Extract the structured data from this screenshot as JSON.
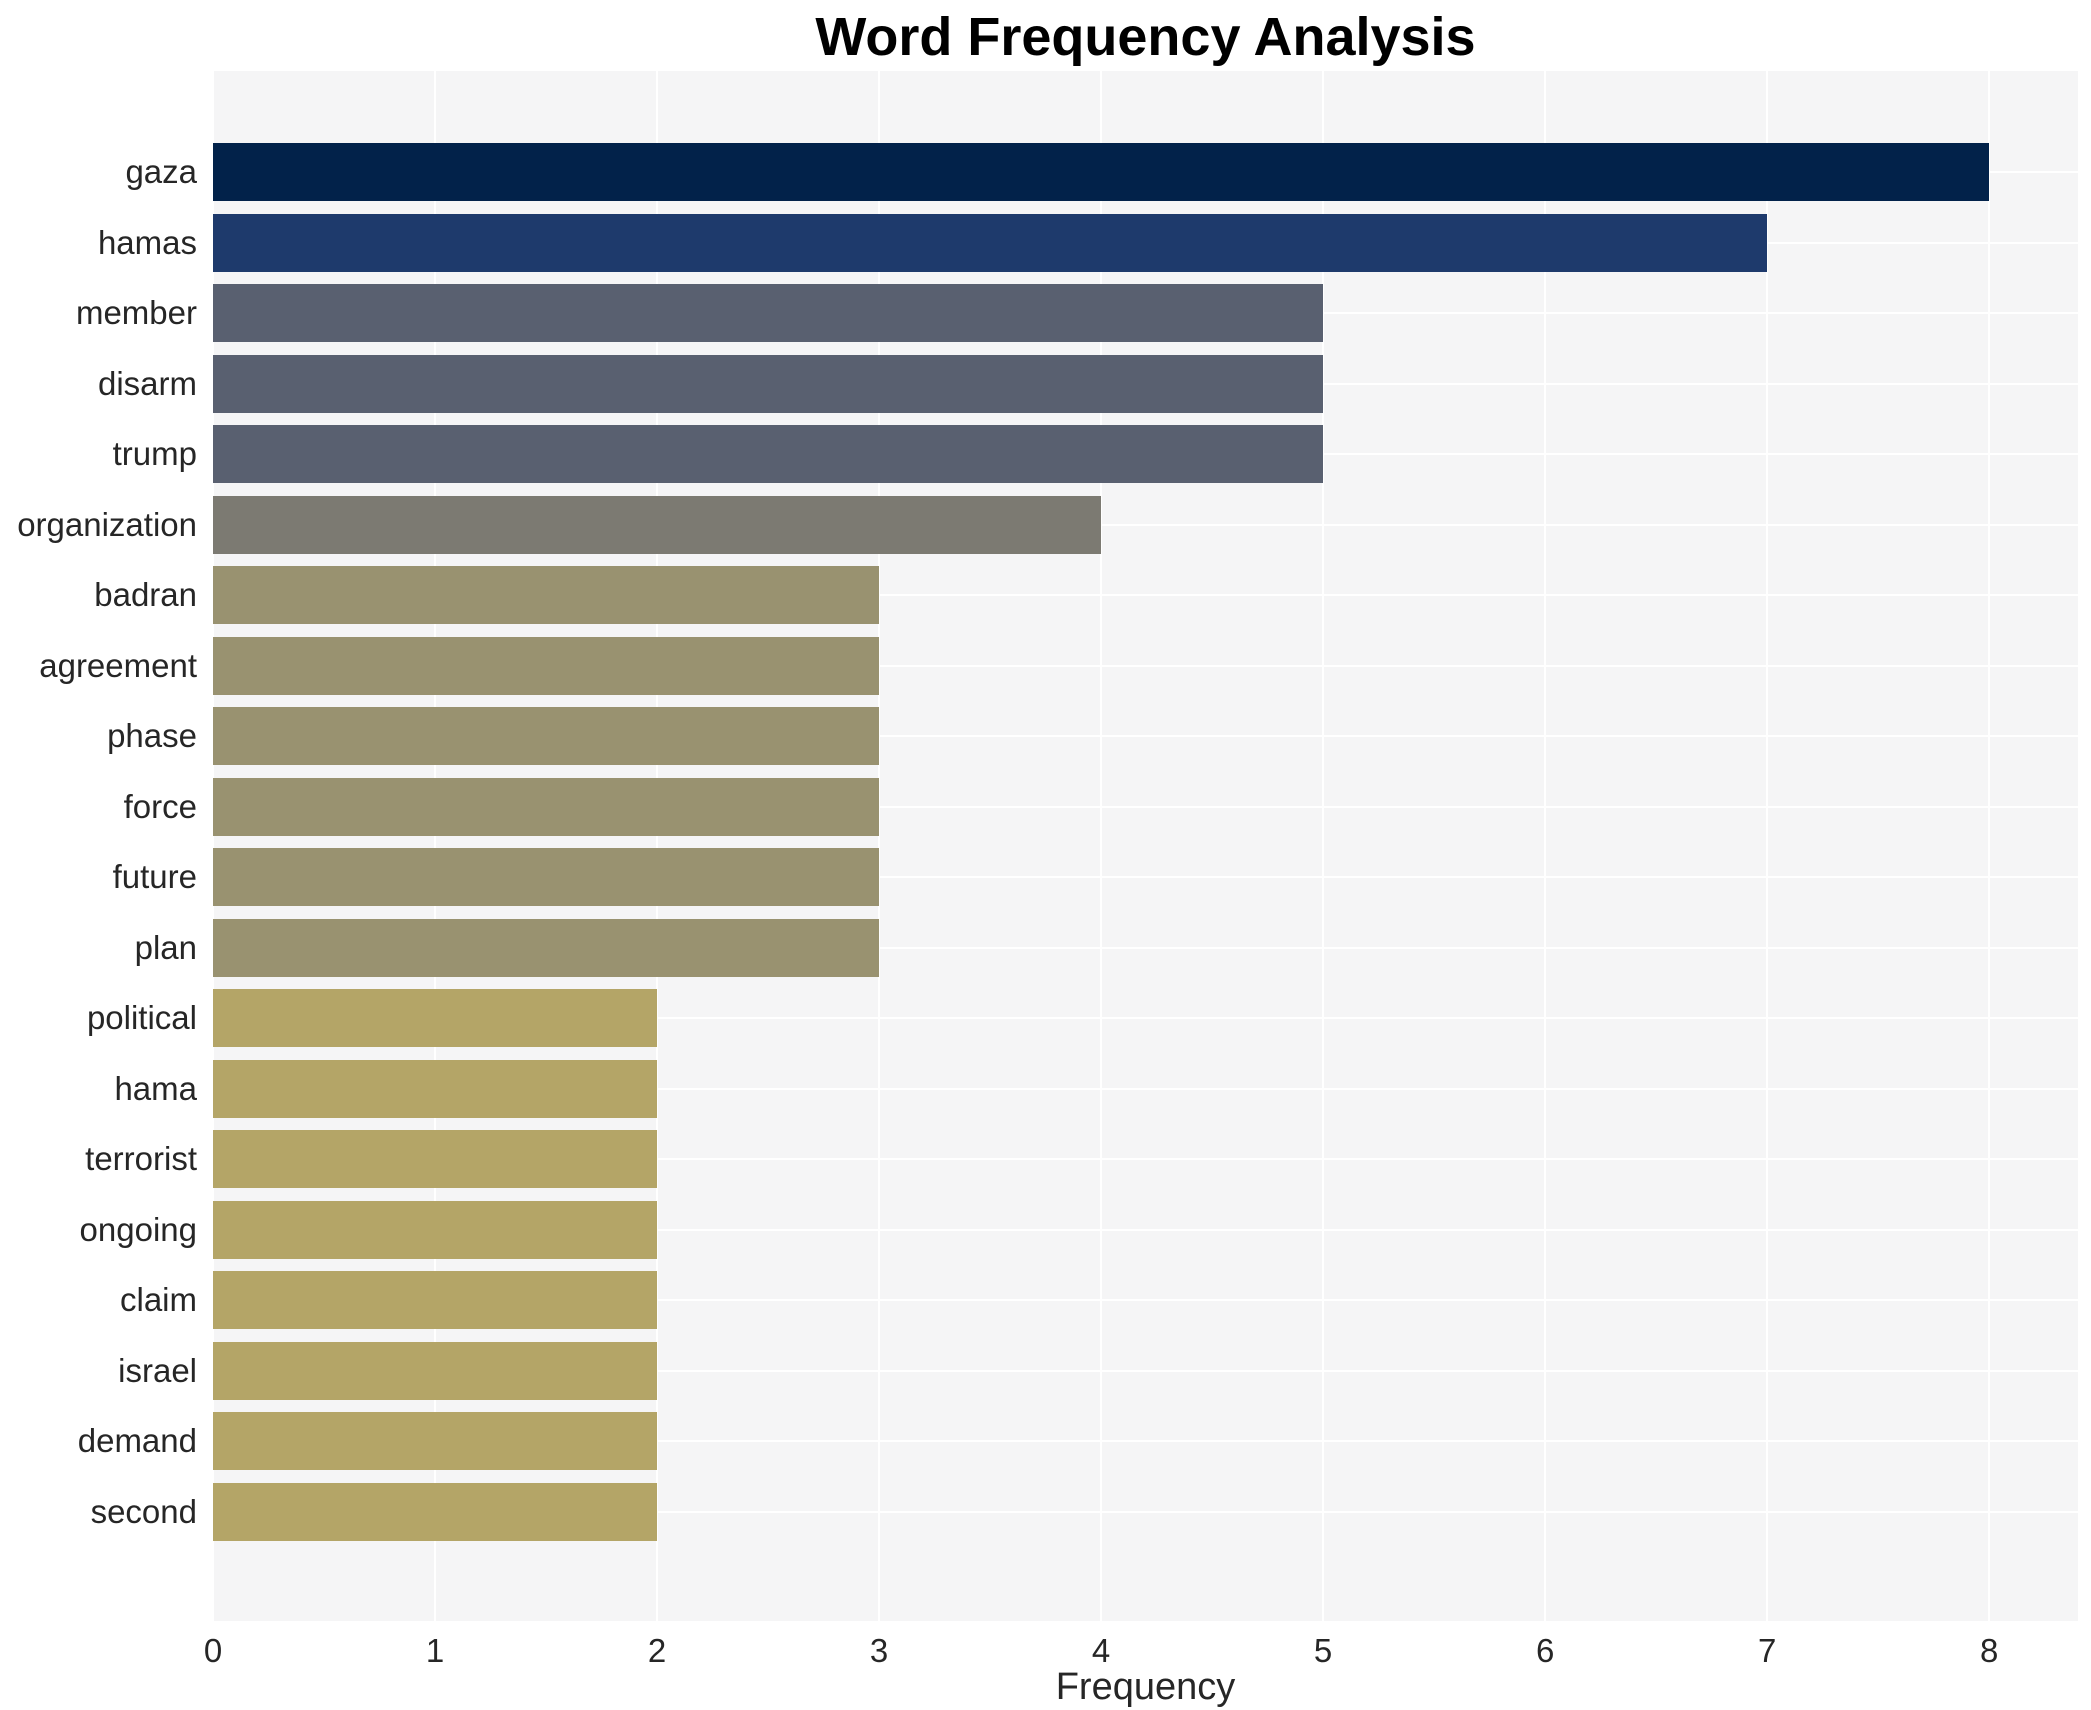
{
  "chart": {
    "title": "Word Frequency Analysis",
    "xlabel": "Frequency",
    "x_ticks": [
      "0",
      "1",
      "2",
      "3",
      "4",
      "5",
      "6",
      "7",
      "8"
    ],
    "x_axis_max": 8.4,
    "plot_background": "#f5f5f6",
    "grid_color": "#ffffff",
    "text_color": "#262626",
    "title_color": "#000000"
  },
  "chart_data": {
    "type": "bar",
    "orientation": "horizontal",
    "title": "Word Frequency Analysis",
    "xlabel": "Frequency",
    "ylabel": "",
    "xlim": [
      0,
      8.4
    ],
    "grid": true,
    "legend": false,
    "categories": [
      "gaza",
      "hamas",
      "member",
      "disarm",
      "trump",
      "organization",
      "badran",
      "agreement",
      "phase",
      "force",
      "future",
      "plan",
      "political",
      "hama",
      "terrorist",
      "ongoing",
      "claim",
      "israel",
      "demand",
      "second"
    ],
    "values": [
      8,
      7,
      5,
      5,
      5,
      4,
      3,
      3,
      3,
      3,
      3,
      3,
      2,
      2,
      2,
      2,
      2,
      2,
      2,
      2
    ],
    "bar_colors": [
      "#02224a",
      "#1e3a6c",
      "#596070",
      "#596070",
      "#596070",
      "#7c7a72",
      "#999270",
      "#999270",
      "#999270",
      "#999270",
      "#999270",
      "#999270",
      "#b4a567",
      "#b4a567",
      "#b4a567",
      "#b4a567",
      "#b4a567",
      "#b4a567",
      "#b4a567",
      "#b4a567"
    ]
  }
}
